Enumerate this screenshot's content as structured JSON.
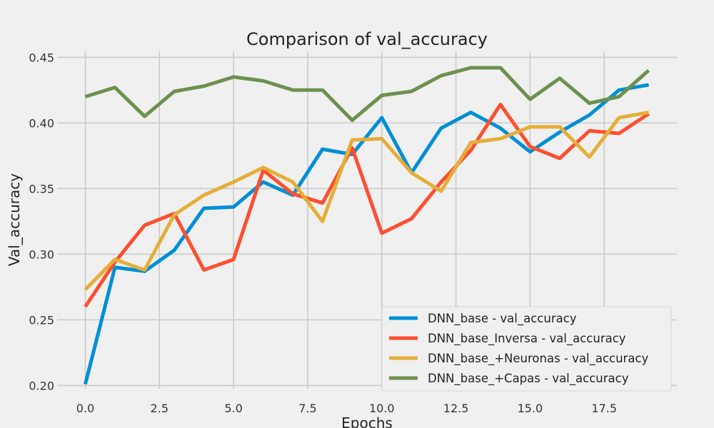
{
  "chart_data": {
    "type": "line",
    "title": "Comparison of val_accuracy",
    "xlabel": "Epochs",
    "ylabel": "Val_accuracy",
    "xlim": [
      -0.95,
      19.95
    ],
    "ylim": [
      0.1975,
      0.4545
    ],
    "x_ticks": [
      0.0,
      2.5,
      5.0,
      7.5,
      10.0,
      12.5,
      15.0,
      17.5
    ],
    "x_tick_labels": [
      "0.0",
      "2.5",
      "5.0",
      "7.5",
      "10.0",
      "12.5",
      "15.0",
      "17.5"
    ],
    "y_ticks": [
      0.2,
      0.25,
      0.3,
      0.35,
      0.4,
      0.45
    ],
    "y_tick_labels": [
      "0.20",
      "0.25",
      "0.30",
      "0.35",
      "0.40",
      "0.45"
    ],
    "grid": true,
    "legend_position": "lower-right",
    "x": [
      0,
      1,
      2,
      3,
      4,
      5,
      6,
      7,
      8,
      9,
      10,
      11,
      12,
      13,
      14,
      15,
      16,
      17,
      18,
      19
    ],
    "series": [
      {
        "name": "DNN_base - val_accuracy",
        "color": "#008fd5",
        "values": [
          0.201,
          0.29,
          0.287,
          0.303,
          0.335,
          0.336,
          0.355,
          0.345,
          0.38,
          0.376,
          0.404,
          0.362,
          0.396,
          0.408,
          0.396,
          0.378,
          0.393,
          0.406,
          0.425,
          0.429
        ]
      },
      {
        "name": "DNN_base_Inversa - val_accuracy",
        "color": "#fc4f30",
        "values": [
          0.26,
          0.294,
          0.322,
          0.331,
          0.288,
          0.296,
          0.364,
          0.346,
          0.339,
          0.381,
          0.316,
          0.327,
          0.355,
          0.379,
          0.414,
          0.382,
          0.373,
          0.394,
          0.392,
          0.407
        ]
      },
      {
        "name": "DNN_base_+Neuronas - val_accuracy",
        "color": "#e5ae38",
        "values": [
          0.273,
          0.296,
          0.288,
          0.33,
          0.345,
          0.355,
          0.366,
          0.355,
          0.325,
          0.387,
          0.388,
          0.362,
          0.348,
          0.385,
          0.388,
          0.397,
          0.397,
          0.374,
          0.404,
          0.408
        ]
      },
      {
        "name": "DNN_base_+Capas - val_accuracy",
        "color": "#6d904f",
        "values": [
          0.42,
          0.427,
          0.405,
          0.424,
          0.428,
          0.435,
          0.432,
          0.425,
          0.425,
          0.402,
          0.421,
          0.424,
          0.436,
          0.442,
          0.442,
          0.418,
          0.434,
          0.415,
          0.42,
          0.44
        ]
      }
    ]
  }
}
